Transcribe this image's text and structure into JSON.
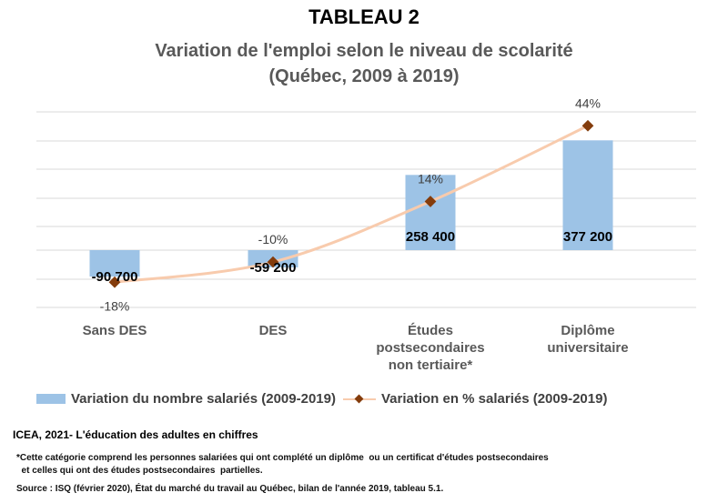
{
  "heading": "TABLEAU 2",
  "chart_data": {
    "type": "bar",
    "title_lines": [
      "Variation de l'emploi selon le niveau de scolarité",
      "(Québec, 2009 à 2019)"
    ],
    "categories": [
      [
        "Sans DES"
      ],
      [
        "DES"
      ],
      [
        "Études",
        "postsecondaires",
        "non tertiaire*"
      ],
      [
        "Diplôme",
        "universitaire"
      ]
    ],
    "series": [
      {
        "name": "Variation du nombre salariés (2009-2019)",
        "type": "bar",
        "color": "#9dc3e6",
        "values": [
          -90700,
          -59200,
          258400,
          377200
        ],
        "labels": [
          "-90 700",
          "-59 200",
          "258 400",
          "377 200"
        ]
      },
      {
        "name": "Variation en % salariés (2009-2019)",
        "type": "line",
        "color": "#f8cbad",
        "marker_color": "#843c0c",
        "values": [
          -18,
          -10,
          14,
          44
        ],
        "labels": [
          "-18%",
          "-10%",
          "14%",
          "44%"
        ]
      }
    ],
    "ylim_bars": [
      -200000,
      500000
    ],
    "ylim_pct": [
      -28,
      56
    ],
    "grid": true
  },
  "legend": {
    "bar_label": "Variation du nombre salariés (2009-2019)",
    "line_label": "Variation en % salariés (2009-2019)"
  },
  "credit": "ICEA, 2021- L'éducation des adultes en chiffres",
  "footnote": {
    "line1": "*Cette catégorie comprend les personnes salariées qui ont complété un diplôme  ou un certificat d'études postsecondaires",
    "line2": "  et celles qui ont des études postsecondaires  partielles."
  },
  "source": "Source : ISQ (février 2020), État du marché du travail au Québec, bilan de l'année 2019, tableau 5.1."
}
